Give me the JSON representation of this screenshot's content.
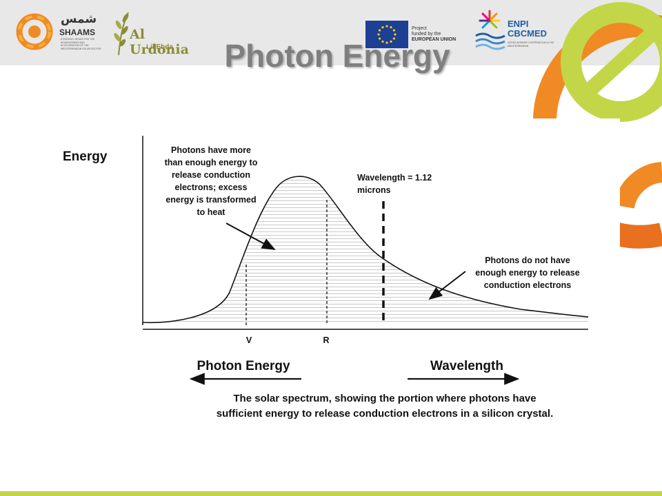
{
  "header": {
    "shaams": {
      "arabic_name": "شمس",
      "name": "SHAAMS",
      "description": "STRATEGIC HEADS FOR THE ADVANCEMENT AND ACCELERATION OF THE MEDITERRANEAN SOLAR SECTOR"
    },
    "urdonia": {
      "name": "Al Urdonia",
      "subtitle": "Lil Ebda"
    },
    "eu": {
      "line1": "Project",
      "line2": "funded by the",
      "line3": "EUROPEAN UNION"
    },
    "enpi": {
      "line1": "ENPI",
      "line2": "CBCMED",
      "description": "CROSS-BORDER COOPERATION IN THE MEDITERRANEAN"
    }
  },
  "slide": {
    "title": "Photon Energy"
  },
  "diagram": {
    "energy_label": "Energy",
    "left_annotation": [
      "Photons have more",
      "than enough energy to",
      "release conduction",
      "electrons; excess",
      "energy is transformed",
      "to heat"
    ],
    "wavelength_marker": [
      "Wavelength = 1.12",
      "microns"
    ],
    "right_annotation": [
      "Photons do not have",
      "enough energy to release",
      "conduction electrons"
    ],
    "tick_v": "V",
    "tick_r": "R",
    "photon_energy_label": "Photon Energy",
    "wavelength_label": "Wavelength",
    "caption": [
      "The solar spectrum, showing the portion where photons have",
      "sufficient energy to release conduction electrons in a silicon crystal."
    ]
  },
  "colors": {
    "banner": "#e8e8e8",
    "title": "#7f7f7f",
    "accent_green": "#c3d647",
    "accent_orange": "#f08a24"
  }
}
